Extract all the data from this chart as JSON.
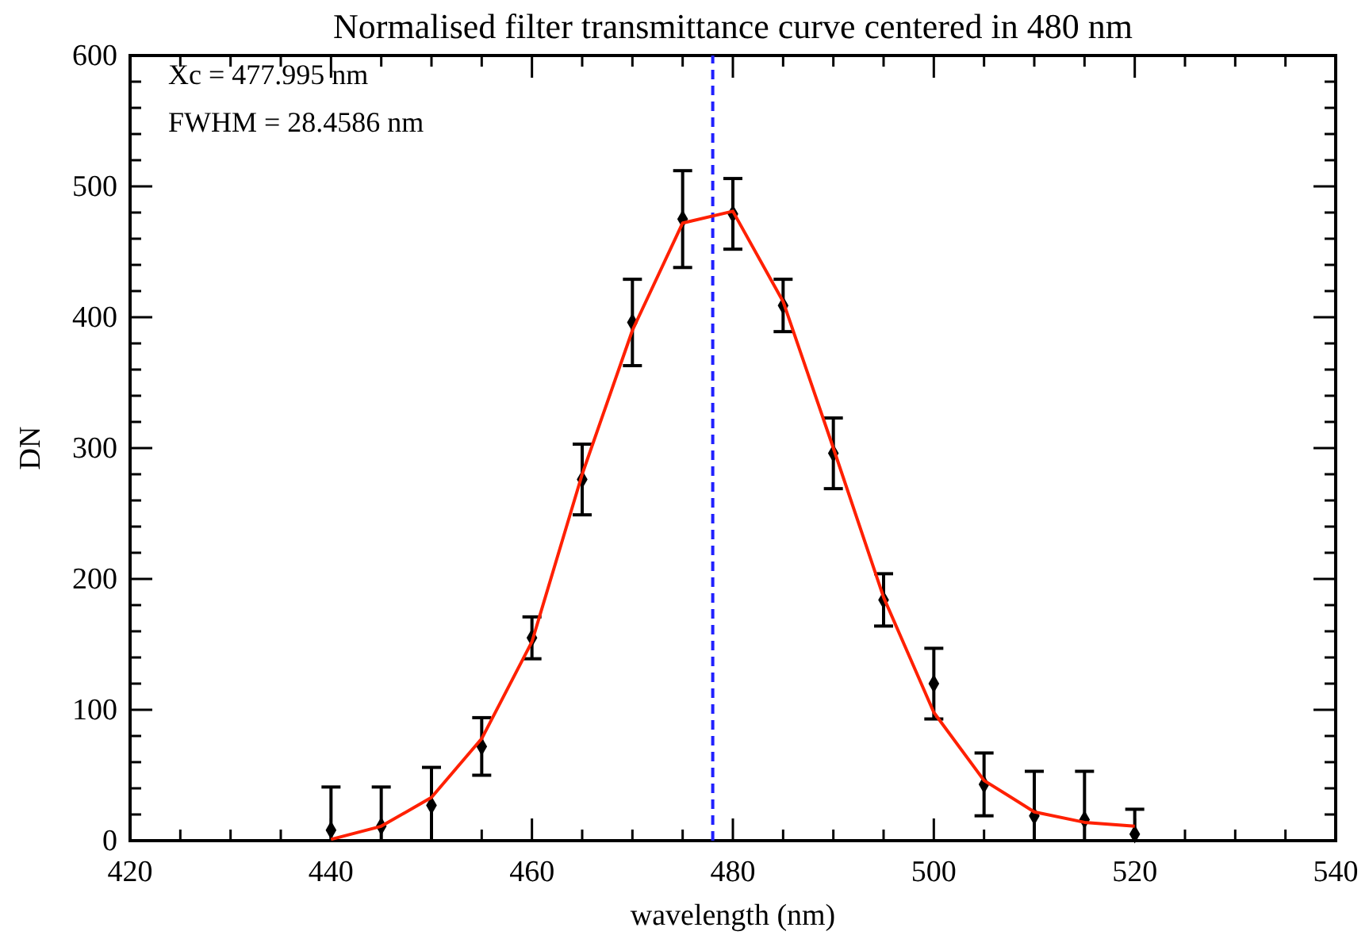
{
  "chart_data": {
    "type": "scatter",
    "title": "Normalised filter transmittance curve centered in 480 nm",
    "xlabel": "wavelength (nm)",
    "ylabel": "DN",
    "annotations": [
      "Xc = 477.995 nm",
      "FWHM = 28.4586 nm"
    ],
    "xlim": [
      420,
      540
    ],
    "ylim": [
      0,
      600
    ],
    "xticks": [
      420,
      {
        "value": 425,
        "label": null
      },
      {
        "value": 430,
        "label": null
      },
      {
        "value": 435,
        "label": null
      },
      440,
      {
        "value": 445,
        "label": null
      },
      {
        "value": 450,
        "label": null
      },
      {
        "value": 455,
        "label": null
      },
      460,
      {
        "value": 465,
        "label": null
      },
      {
        "value": 470,
        "label": null
      },
      {
        "value": 475,
        "label": null
      },
      480,
      {
        "value": 485,
        "label": null
      },
      {
        "value": 490,
        "label": null
      },
      {
        "value": 495,
        "label": null
      },
      500,
      {
        "value": 505,
        "label": null
      },
      {
        "value": 510,
        "label": null
      },
      {
        "value": 515,
        "label": null
      },
      520,
      {
        "value": 525,
        "label": null
      },
      {
        "value": 530,
        "label": null
      },
      {
        "value": 535,
        "label": null
      },
      540
    ],
    "yticks": [
      0,
      {
        "value": 20,
        "label": null
      },
      {
        "value": 40,
        "label": null
      },
      {
        "value": 60,
        "label": null
      },
      {
        "value": 80,
        "label": null
      },
      100,
      {
        "value": 120,
        "label": null
      },
      {
        "value": 140,
        "label": null
      },
      {
        "value": 160,
        "label": null
      },
      {
        "value": 180,
        "label": null
      },
      200,
      {
        "value": 220,
        "label": null
      },
      {
        "value": 240,
        "label": null
      },
      {
        "value": 260,
        "label": null
      },
      {
        "value": 280,
        "label": null
      },
      300,
      {
        "value": 320,
        "label": null
      },
      {
        "value": 340,
        "label": null
      },
      {
        "value": 360,
        "label": null
      },
      {
        "value": 380,
        "label": null
      },
      400,
      {
        "value": 420,
        "label": null
      },
      {
        "value": 440,
        "label": null
      },
      {
        "value": 460,
        "label": null
      },
      {
        "value": 480,
        "label": null
      },
      500,
      {
        "value": 520,
        "label": null
      },
      {
        "value": 540,
        "label": null
      },
      {
        "value": 560,
        "label": null
      },
      {
        "value": 580,
        "label": null
      },
      600
    ],
    "x": [
      440,
      445,
      450,
      455,
      460,
      465,
      470,
      475,
      480,
      485,
      490,
      495,
      500,
      505,
      510,
      515,
      520
    ],
    "grid": false,
    "series": [
      {
        "color": "#000000",
        "marker": "diamond",
        "values": [
          8,
          11,
          27,
          72,
          155,
          276,
          396,
          475,
          479,
          409,
          296,
          184,
          120,
          43,
          19,
          16,
          5
        ],
        "errors": [
          [
            0,
            41
          ],
          [
            0,
            41
          ],
          [
            0,
            56
          ],
          22,
          16,
          27,
          33,
          37,
          27,
          20,
          27,
          20,
          27,
          24,
          [
            0,
            53
          ],
          [
            0,
            53
          ],
          [
            0,
            24
          ]
        ]
      },
      {
        "type": "line",
        "color": "#ff2000",
        "values": [
          1,
          11,
          33,
          78,
          152,
          280,
          390,
          472,
          481,
          412,
          300,
          186,
          98,
          46,
          22,
          14,
          11
        ]
      }
    ],
    "ref_lines": [
      {
        "axis": "x",
        "value": 477.995,
        "color": "#2020ff",
        "line_style": "dashed"
      }
    ]
  }
}
